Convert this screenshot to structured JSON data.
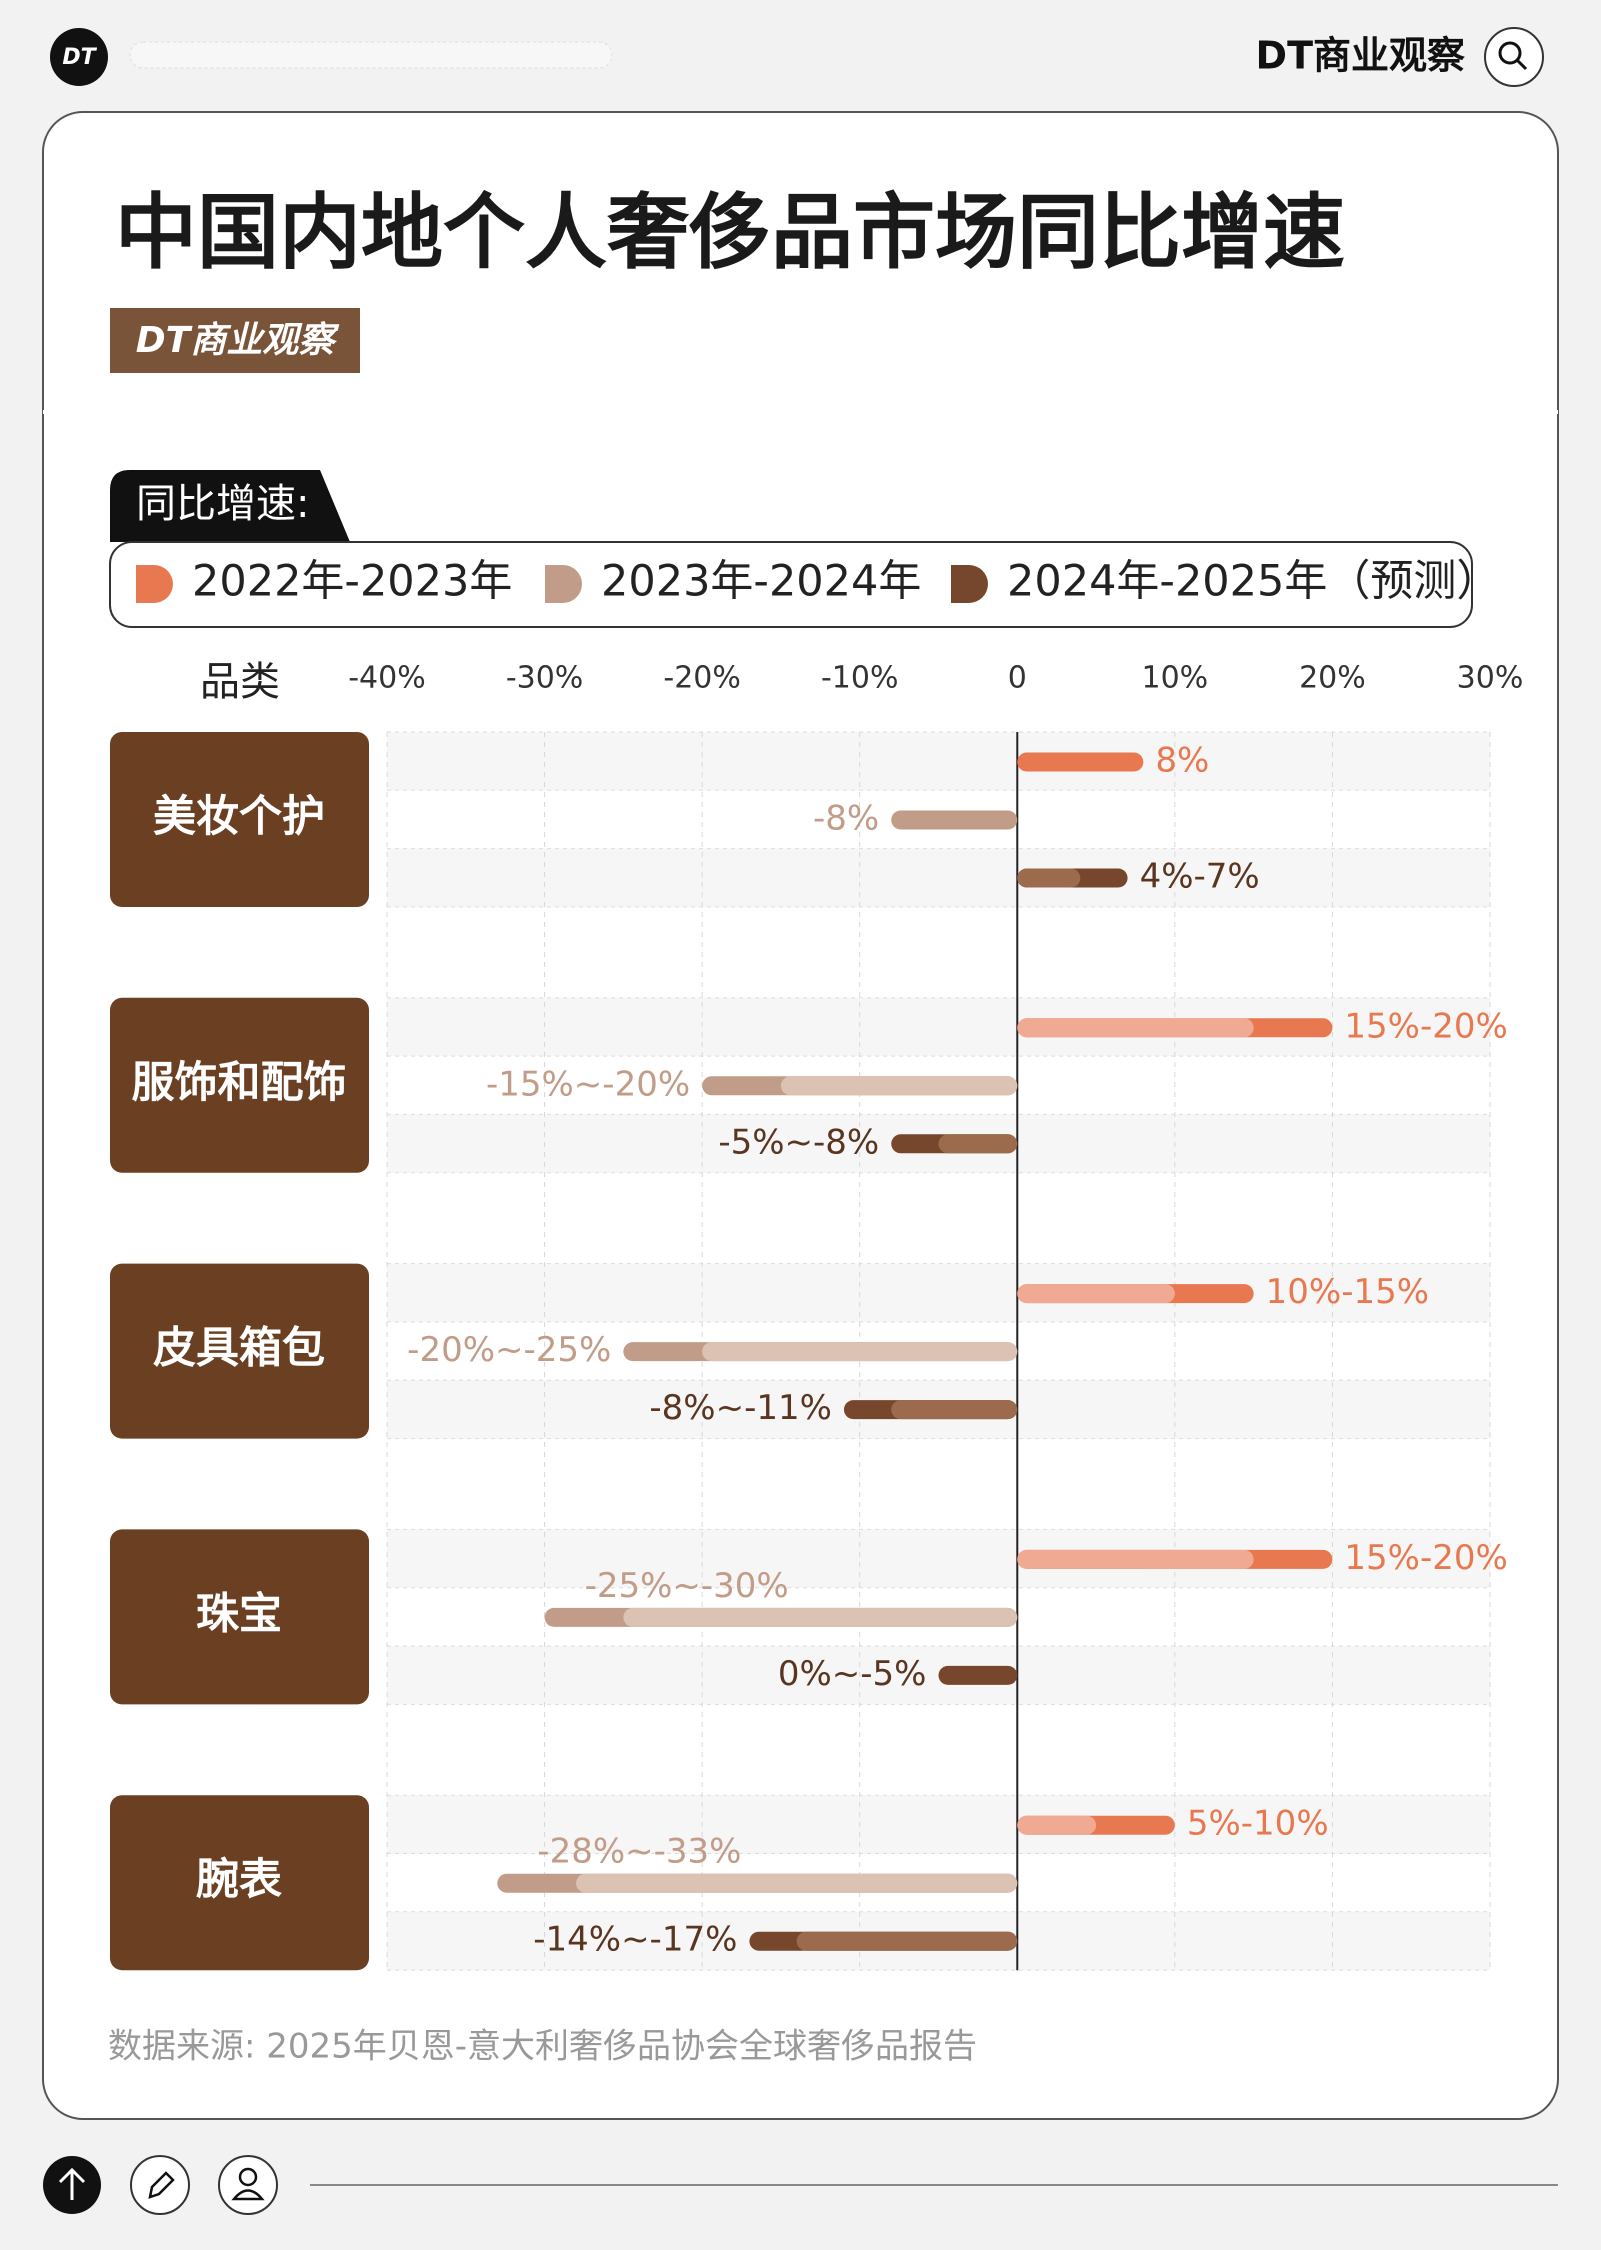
{
  "header": {
    "brand": "DT商业观察"
  },
  "chart_data": {
    "type": "range-bar",
    "title": "中国内地个人奢侈品市场同比增速",
    "legend_title": "同比增速:",
    "category_label": "品类",
    "categories": [
      "美妆个护",
      "服饰和配饰",
      "皮具箱包",
      "珠宝",
      "腕表"
    ],
    "series": [
      {
        "name": "2022年-2023年",
        "color": "#e8784f",
        "light_color": "#f0aa94",
        "values": [
          [
            8,
            8
          ],
          [
            15,
            20
          ],
          [
            10,
            15
          ],
          [
            15,
            20
          ],
          [
            5,
            10
          ]
        ],
        "value_labels": [
          "8%",
          "15%-20%",
          "10%-15%",
          "15%-20%",
          "5%-10%"
        ]
      },
      {
        "name": "2023年-2024年",
        "color": "#c19c88",
        "light_color": "#dcc2b2",
        "values": [
          [
            -8,
            -8
          ],
          [
            -15,
            -20
          ],
          [
            -20,
            -25
          ],
          [
            -25,
            -30
          ],
          [
            -28,
            -33
          ]
        ],
        "value_labels": [
          "-8%",
          "-15%~-20%",
          "-20%~-25%",
          "-25%~-30%",
          "-28%~-33%"
        ]
      },
      {
        "name": "2024年-2025年（预测）",
        "color": "#76472c",
        "light_color": "#9c6a4c",
        "values": [
          [
            4,
            7
          ],
          [
            -5,
            -8
          ],
          [
            -8,
            -11
          ],
          [
            0,
            -5
          ],
          [
            -14,
            -17
          ]
        ],
        "value_labels": [
          "4%-7%",
          "-5%~-8%",
          "-8%~-11%",
          "0%~-5%",
          "-14%~-17%"
        ]
      }
    ],
    "xlim": [
      -40,
      30
    ],
    "xticks": [
      {
        "value": -40,
        "label": "-40%"
      },
      {
        "value": -30,
        "label": "-30%"
      },
      {
        "value": -20,
        "label": "-20%"
      },
      {
        "value": -10,
        "label": "-10%"
      },
      0,
      {
        "value": 10,
        "label": "10%"
      },
      {
        "value": 20,
        "label": "20%"
      },
      {
        "value": 30,
        "label": "30%"
      }
    ],
    "grid": true,
    "source": "数据来源: 2025年贝恩-意大利奢侈品协会全球奢侈品报告"
  }
}
